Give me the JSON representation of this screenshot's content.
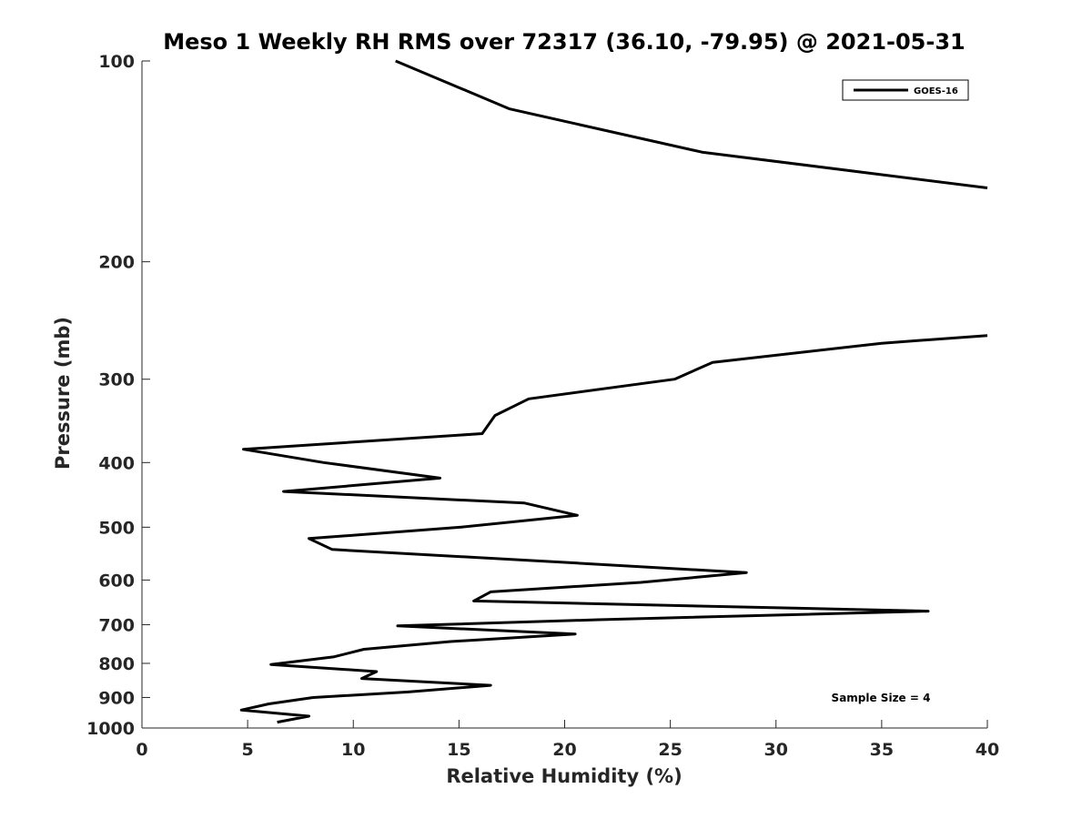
{
  "chart_data": {
    "type": "line",
    "title": "Meso 1 Weekly RH RMS over 72317 (36.10, -79.95) @ 2021-05-31",
    "xlabel": "Relative Humidity (%)",
    "ylabel": "Pressure (mb)",
    "xlim": [
      0,
      40
    ],
    "ylim": [
      100,
      1000
    ],
    "y_scale": "log",
    "y_reversed": true,
    "grid": false,
    "legend_position": "top-right",
    "x_ticks": [
      "0",
      "5",
      "10",
      "15",
      "20",
      "25",
      "30",
      "35",
      "40"
    ],
    "y_ticks": [
      "100",
      "200",
      "300",
      "400",
      "500",
      "600",
      "700",
      "800",
      "900",
      "1000"
    ],
    "annotation": "Sample Size = 4",
    "series": [
      {
        "name": "GOES-16",
        "color": "#000000",
        "segments": [
          [
            {
              "x": 12.0,
              "y": 100
            },
            {
              "x": 17.4,
              "y": 118
            },
            {
              "x": 26.5,
              "y": 137
            },
            {
              "x": 40.0,
              "y": 155
            }
          ],
          [
            {
              "x": 40.0,
              "y": 258
            },
            {
              "x": 35.0,
              "y": 265
            },
            {
              "x": 27.0,
              "y": 283
            },
            {
              "x": 25.2,
              "y": 300
            },
            {
              "x": 18.3,
              "y": 321
            },
            {
              "x": 16.7,
              "y": 340
            },
            {
              "x": 16.1,
              "y": 362
            },
            {
              "x": 4.8,
              "y": 382
            },
            {
              "x": 8.6,
              "y": 400
            },
            {
              "x": 14.1,
              "y": 422
            },
            {
              "x": 6.7,
              "y": 442
            },
            {
              "x": 18.1,
              "y": 460
            },
            {
              "x": 20.6,
              "y": 480
            },
            {
              "x": 15.1,
              "y": 500
            },
            {
              "x": 7.9,
              "y": 520
            },
            {
              "x": 9.0,
              "y": 540
            },
            {
              "x": 20.6,
              "y": 566
            },
            {
              "x": 28.6,
              "y": 585
            },
            {
              "x": 23.6,
              "y": 605
            },
            {
              "x": 16.5,
              "y": 625
            },
            {
              "x": 15.7,
              "y": 645
            },
            {
              "x": 37.2,
              "y": 668
            },
            {
              "x": 21.6,
              "y": 688
            },
            {
              "x": 12.1,
              "y": 703
            },
            {
              "x": 20.5,
              "y": 723
            },
            {
              "x": 14.6,
              "y": 742
            },
            {
              "x": 10.5,
              "y": 762
            },
            {
              "x": 9.1,
              "y": 782
            },
            {
              "x": 6.1,
              "y": 803
            },
            {
              "x": 11.1,
              "y": 823
            },
            {
              "x": 10.4,
              "y": 843
            },
            {
              "x": 16.5,
              "y": 863
            },
            {
              "x": 12.6,
              "y": 883
            },
            {
              "x": 8.1,
              "y": 900
            },
            {
              "x": 6.0,
              "y": 920
            },
            {
              "x": 4.7,
              "y": 940
            },
            {
              "x": 7.9,
              "y": 960
            },
            {
              "x": 6.4,
              "y": 980
            }
          ]
        ]
      }
    ]
  }
}
